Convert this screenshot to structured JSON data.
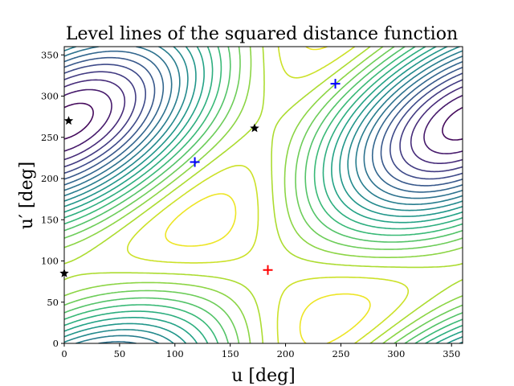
{
  "chart_data": {
    "type": "contour",
    "title": "Level lines of the squared distance function",
    "xlabel": "u [deg]",
    "ylabel": "u′ [deg]",
    "xlim": [
      0,
      360
    ],
    "ylim": [
      0,
      360
    ],
    "xticks": [
      0,
      50,
      100,
      150,
      200,
      250,
      300,
      350
    ],
    "yticks": [
      0,
      50,
      100,
      150,
      200,
      250,
      300,
      350
    ],
    "grid": false,
    "colormap": "viridis",
    "contour_levels": 20,
    "minimum_point": {
      "x": 184,
      "y": 89,
      "marker": "plus",
      "color": "#ff0000"
    },
    "markers": [
      {
        "x": 118,
        "y": 220,
        "marker": "plus",
        "color": "#0000ff"
      },
      {
        "x": 245,
        "y": 315,
        "marker": "plus",
        "color": "#0000ff"
      },
      {
        "x": 4,
        "y": 270,
        "marker": "star",
        "color": "#000000"
      },
      {
        "x": 172,
        "y": 261,
        "marker": "star",
        "color": "#000000"
      },
      {
        "x": 0,
        "y": 85,
        "marker": "star",
        "color": "#000000"
      }
    ]
  }
}
